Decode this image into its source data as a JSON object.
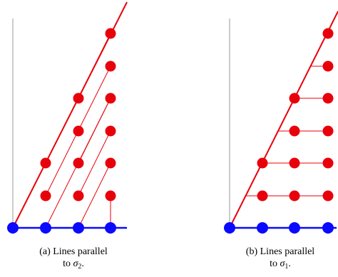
{
  "panels": [
    {
      "id": "a",
      "caption_line1": "(a) Lines parallel",
      "caption_line2_prefix": "to ",
      "caption_symbol": "σ",
      "caption_subscript": "2",
      "caption_suffix": "."
    },
    {
      "id": "b",
      "caption_line1": "(b) Lines parallel",
      "caption_line2_prefix": "to ",
      "caption_symbol": "σ",
      "caption_subscript": "1",
      "caption_suffix": "."
    }
  ],
  "colors": {
    "red": "#e8000b",
    "blue": "#0a0aff",
    "axis": "#9a9a9a"
  }
}
